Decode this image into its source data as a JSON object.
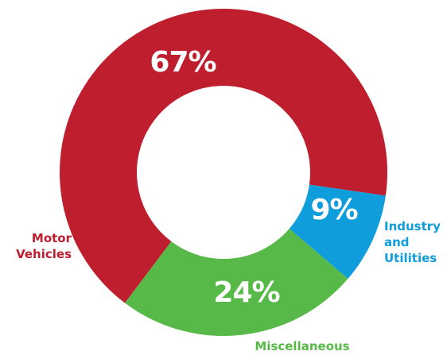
{
  "chart_data": {
    "type": "donut",
    "categories": [
      "Motor Vehicles",
      "Industry and Utilities",
      "Miscellaneous"
    ],
    "values": [
      67,
      9,
      24
    ],
    "value_labels": [
      "67%",
      "9%",
      "24%"
    ],
    "colors": [
      "#be1e2d",
      "#0f9ddb",
      "#57b947"
    ]
  }
}
